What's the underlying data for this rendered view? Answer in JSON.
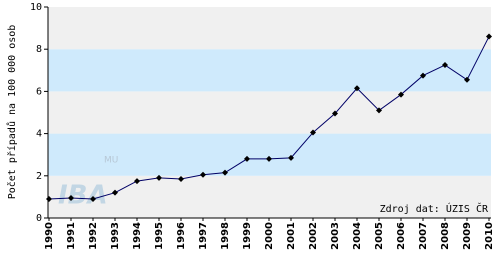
{
  "chart_data": {
    "type": "line",
    "y_label": "Počet případů na 100 000 osob",
    "annotation": "Zdroj dat: ÚZIS ČR",
    "watermark": [
      "IBA",
      "MU"
    ],
    "categories": [
      "1990",
      "1991",
      "1992",
      "1993",
      "1994",
      "1995",
      "1996",
      "1997",
      "1998",
      "1999",
      "2000",
      "2001",
      "2002",
      "2003",
      "2004",
      "2005",
      "2006",
      "2007",
      "2008",
      "2009",
      "2010"
    ],
    "values": [
      0.9,
      0.95,
      0.9,
      1.2,
      1.75,
      1.9,
      1.85,
      2.05,
      2.15,
      2.8,
      2.8,
      2.85,
      4.05,
      4.95,
      6.15,
      5.1,
      5.85,
      6.75,
      7.25,
      6.55,
      8.6
    ],
    "color": "#000066",
    "ylim": [
      0,
      10
    ],
    "yticks": [
      0,
      2,
      4,
      6,
      8,
      10
    ],
    "band_colors": [
      "#f0f0f0",
      "#cfeafc"
    ]
  }
}
